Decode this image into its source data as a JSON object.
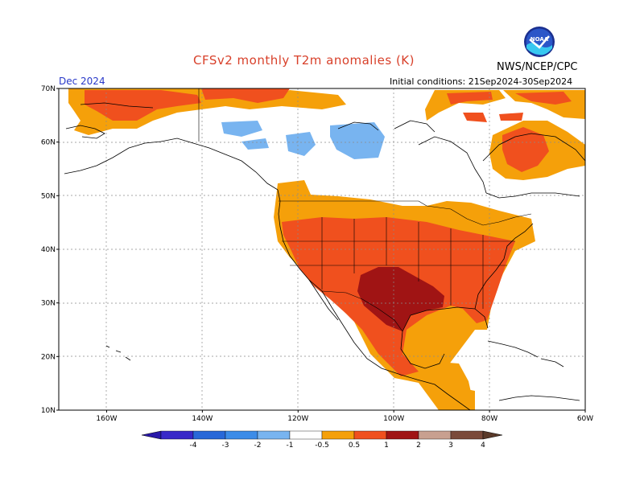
{
  "header": {
    "title": "CFSv2 monthly T2m anomalies (K)",
    "month": "Dec 2024",
    "initial_conditions": "Initial conditions: 21Sep2024-30Sep2024",
    "agency": "NWS/NCEP/CPC",
    "logo_text": "NOAA"
  },
  "map": {
    "extent": {
      "lon_min": -170,
      "lon_max": -60,
      "lat_min": 10,
      "lat_max": 70
    },
    "lat_labels": [
      "10N",
      "20N",
      "30N",
      "40N",
      "50N",
      "60N",
      "70N"
    ],
    "lon_labels": [
      "160W",
      "140W",
      "120W",
      "100W",
      "80W",
      "60W"
    ],
    "grid": true,
    "colors": {
      "neg_0_5_1": "#78b4f0",
      "pos_0_5_1": "#f5a00a",
      "pos_1_2": "#f0501e",
      "pos_2_3": "#a01414",
      "coast": "#000000"
    }
  },
  "colorbar": {
    "labels": [
      "-4",
      "-3",
      "-2",
      "-1",
      "-0.5",
      "0.5",
      "1",
      "2",
      "3",
      "4"
    ],
    "colors": [
      "#3828c8",
      "#2868d8",
      "#3c8ce8",
      "#78b4f0",
      "#ffffff",
      "#f5a00a",
      "#f0501e",
      "#a01414",
      "#c8a090",
      "#7a4a3a"
    ]
  }
}
